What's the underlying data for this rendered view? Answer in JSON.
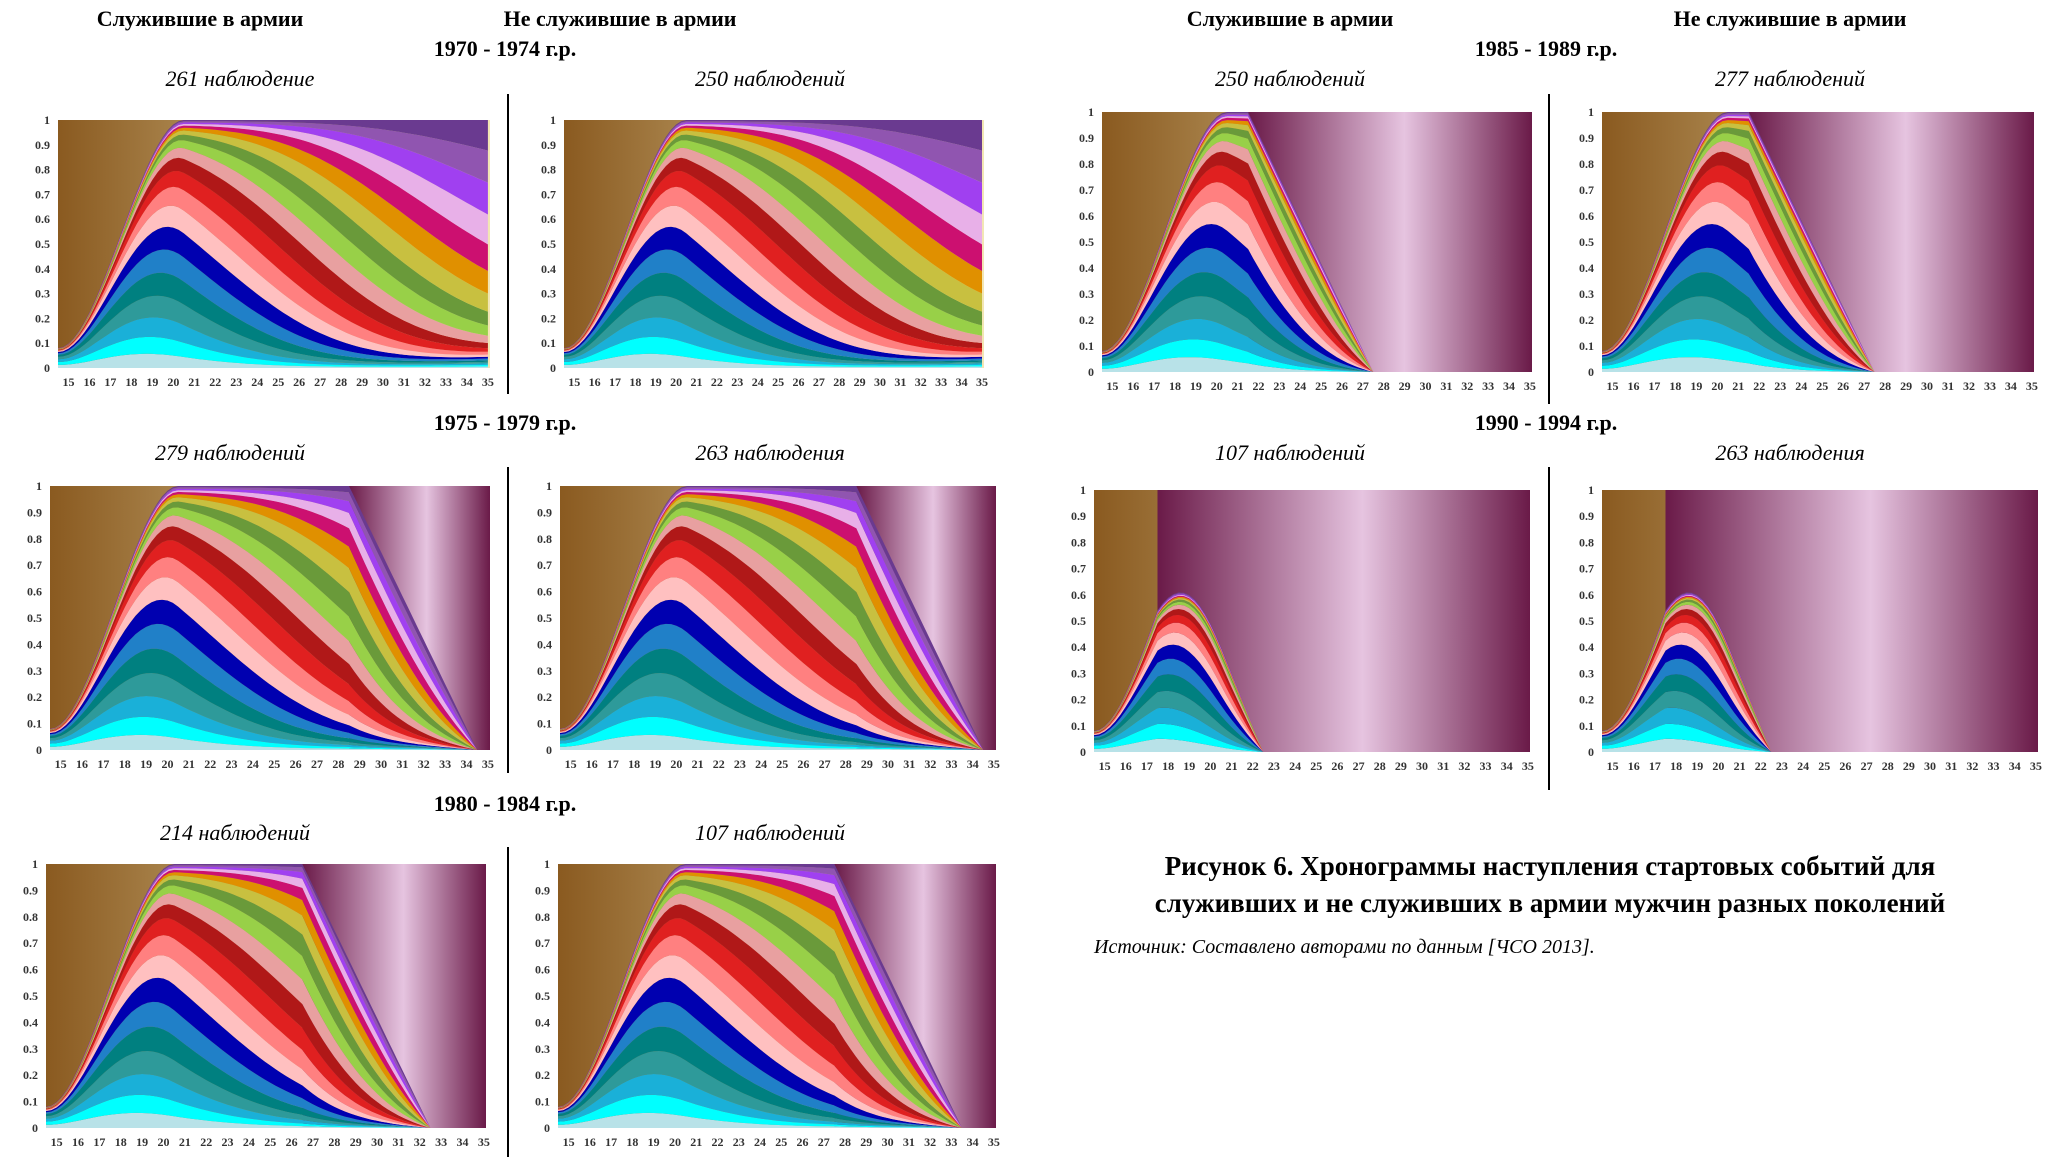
{
  "headers": {
    "served": "Служившие в армии",
    "not_served": "Не служившие в армии"
  },
  "cohorts": [
    {
      "label": "1970 - 1974 г.р.",
      "served_obs": "261 наблюдение",
      "not_served_obs": "250 наблюдений"
    },
    {
      "label": "1975 - 1979 г.р.",
      "served_obs": "279 наблюдений",
      "not_served_obs": "263 наблюдения"
    },
    {
      "label": "1980 - 1984 г.р.",
      "served_obs": "214 наблюдений",
      "not_served_obs": "107 наблюдений"
    },
    {
      "label": "1985 - 1989 г.р.",
      "served_obs": "250 наблюдений",
      "not_served_obs": "277 наблюдений"
    },
    {
      "label": "1990 - 1994 г.р.",
      "served_obs": "107 наблюдений",
      "not_served_obs": "263 наблюдения"
    }
  ],
  "caption": {
    "line1": "Рисунок 6. Хронограммы наступления стартовых событий для",
    "line2": "служивших и не служивших в армии мужчин разных поколений",
    "source": "Источник: Составлено авторами по данным [ЧСО 2013]."
  },
  "chart_data": {
    "type": "area",
    "y_ticks": [
      "0",
      "0.1",
      "0.2",
      "0.3",
      "0.4",
      "0.5",
      "0.6",
      "0.7",
      "0.8",
      "0.9",
      "1"
    ],
    "x_ticks": [
      "15",
      "16",
      "17",
      "18",
      "19",
      "20",
      "21",
      "22",
      "23",
      "24",
      "25",
      "26",
      "27",
      "28",
      "29",
      "30",
      "31",
      "32",
      "33",
      "34",
      "35"
    ],
    "ylim": [
      0,
      1
    ],
    "xlim": [
      15,
      35
    ],
    "state_colors": [
      "#b8e2e8",
      "#00ffff",
      "#1ab0d8",
      "#2e9a9a",
      "#008080",
      "#2080c8",
      "#0000b0",
      "#ffc0c0",
      "#ff8080",
      "#e02020",
      "#b01818",
      "#e8a0a0",
      "#98d048",
      "#6a9a3a",
      "#c8c040",
      "#e09000",
      "#cc1070",
      "#e8b0e8",
      "#a040f0",
      "#9055b0",
      "#6a3a90"
    ],
    "panels": [
      {
        "id": "1970-1974-served",
        "end_age": null,
        "bands": [
          [
            0.08,
            0.1
          ],
          [
            0.22,
            0.5
          ],
          [
            0.32,
            0.6
          ],
          [
            0.42,
            0.67
          ],
          [
            0.52,
            0.73
          ],
          [
            0.6,
            0.78
          ],
          [
            0.66,
            0.83
          ],
          [
            0.72,
            0.89
          ],
          [
            0.8,
            0.95
          ],
          [
            1,
            1
          ]
        ],
        "late": [
          [
            0.02,
            0.05
          ],
          [
            0.06,
            0.08
          ],
          [
            0.08,
            0.1
          ],
          [
            0.1,
            0.12
          ],
          [
            0.14,
            0.18
          ],
          [
            0.2,
            0.28
          ],
          [
            0.26,
            0.35
          ],
          [
            0.3,
            0.4
          ],
          [
            0.4,
            0.5
          ],
          [
            0.58,
            0.62
          ],
          [
            0.68,
            0.72
          ],
          [
            0.78,
            0.8
          ],
          [
            0.88,
            0.9
          ],
          [
            1,
            1
          ]
        ]
      },
      {
        "id": "1970-1974-not-served",
        "end_age": null,
        "bands": [
          [
            0.1,
            0.12
          ],
          [
            0.25,
            0.5
          ],
          [
            0.4,
            0.6
          ],
          [
            0.5,
            0.67
          ],
          [
            0.6,
            0.73
          ],
          [
            0.7,
            0.78
          ],
          [
            0.76,
            0.83
          ],
          [
            0.82,
            0.89
          ],
          [
            0.87,
            0.95
          ],
          [
            1,
            1
          ]
        ],
        "late": [
          [
            0.02,
            0.05
          ],
          [
            0.06,
            0.08
          ],
          [
            0.1,
            0.12
          ],
          [
            0.14,
            0.16
          ],
          [
            0.17,
            0.2
          ],
          [
            0.22,
            0.26
          ],
          [
            0.27,
            0.3
          ],
          [
            0.32,
            0.36
          ],
          [
            0.38,
            0.42
          ],
          [
            0.48,
            0.5
          ],
          [
            0.6,
            0.62
          ],
          [
            0.7,
            0.72
          ],
          [
            0.85,
            0.87
          ],
          [
            1,
            1
          ]
        ]
      },
      {
        "id": "1975-1979-served",
        "end_age": 35
      },
      {
        "id": "1975-1979-not-served",
        "end_age": 35
      },
      {
        "id": "1980-1984-served",
        "end_age": 33
      },
      {
        "id": "1980-1984-not-served",
        "end_age": 34
      },
      {
        "id": "1985-1989-served",
        "end_age": 28
      },
      {
        "id": "1985-1989-not-served",
        "end_age": 28
      },
      {
        "id": "1990-1994-served",
        "end_age": 23
      },
      {
        "id": "1990-1994-not-served",
        "end_age": 23
      }
    ]
  }
}
